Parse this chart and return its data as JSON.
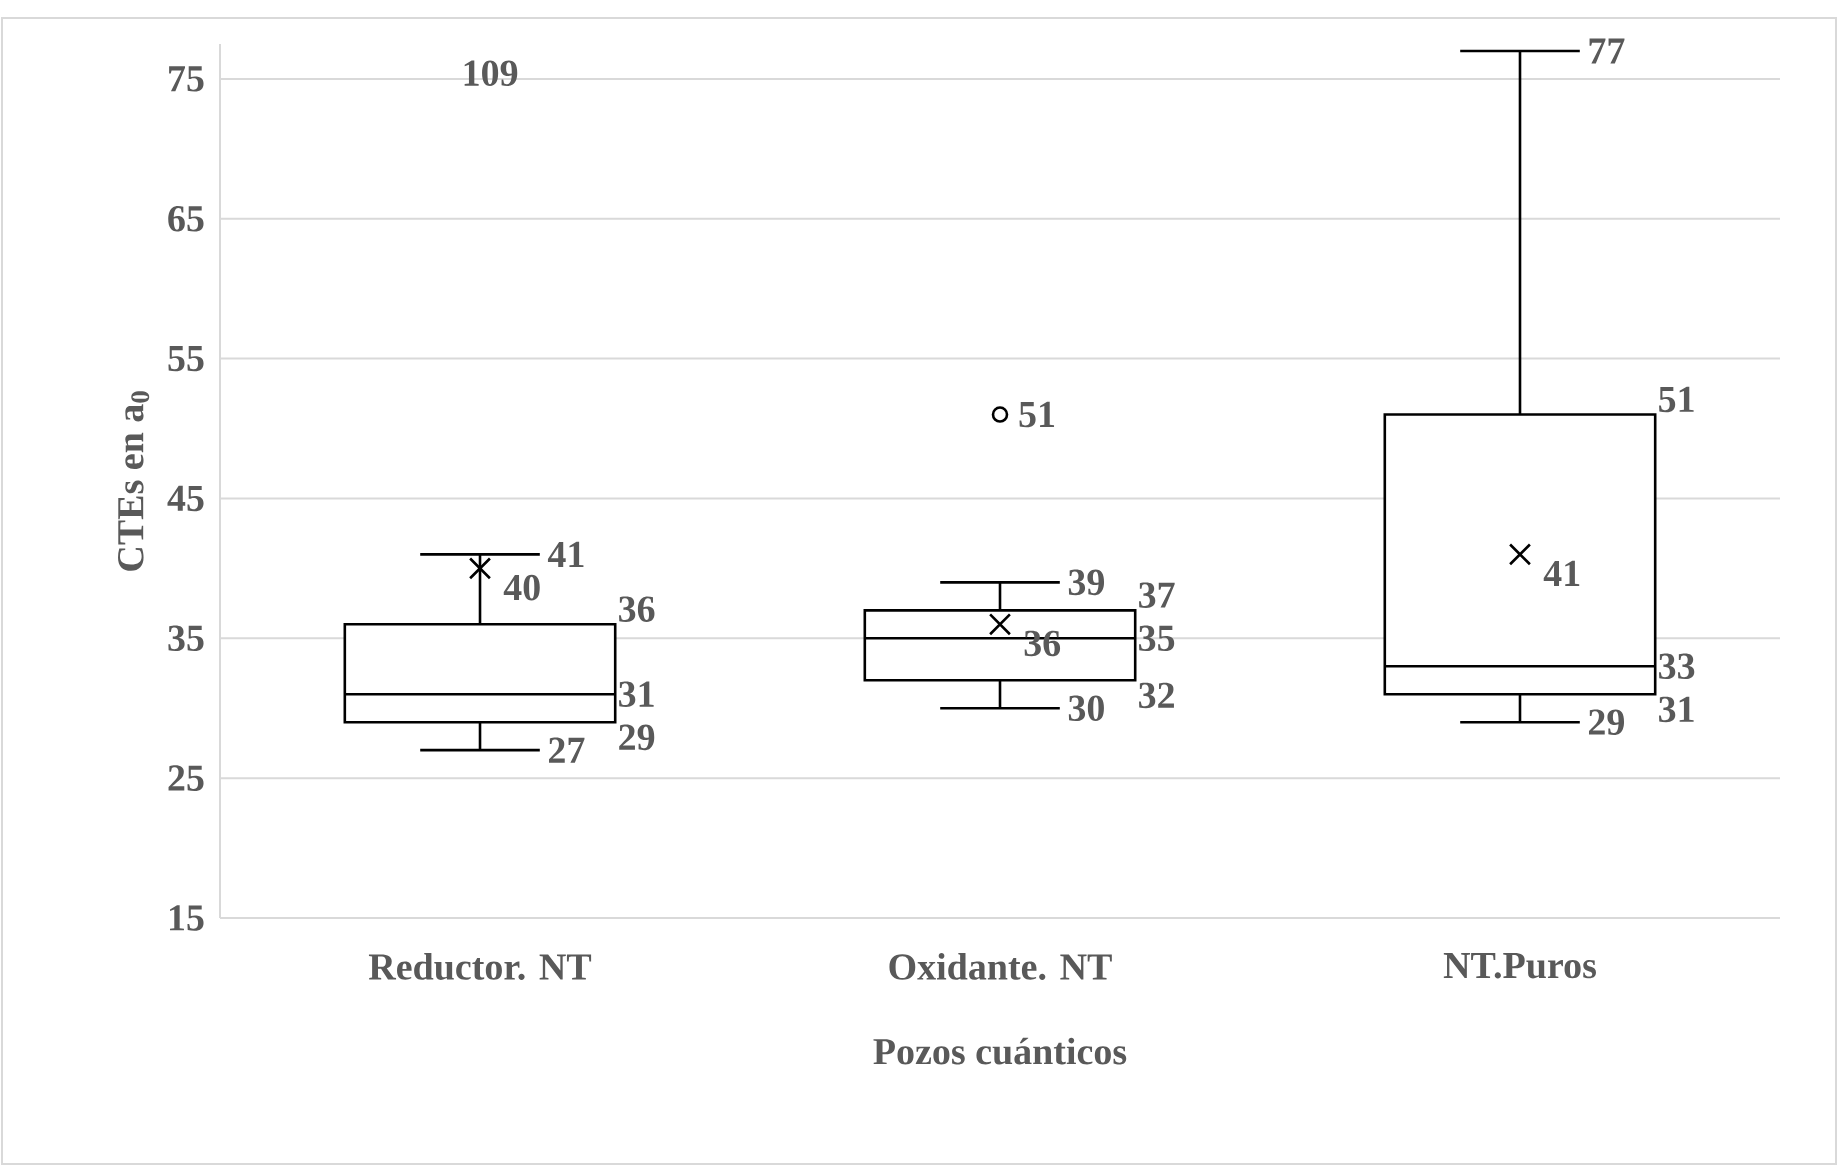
{
  "chart_data": {
    "type": "box",
    "xlabel": "Pozos cuánticos",
    "ylabel": "CTEs en a$_{0}$",
    "categories": [
      "Reductor. NT",
      "Oxidante. NT",
      "NT.Puros"
    ],
    "boxes": [
      {
        "low": 27,
        "q1": 29,
        "median": 31,
        "q3": 36,
        "high": 41,
        "mean": 40
      },
      {
        "low": 30,
        "q1": 32,
        "median": 35,
        "q3": 37,
        "high": 39,
        "mean": 36,
        "outliers": [
          51
        ]
      },
      {
        "low": 29,
        "q1": 31,
        "median": 33,
        "q3": 51,
        "high": 77,
        "mean": 41
      }
    ],
    "ylim": [
      15,
      77.5
    ],
    "yticks": [
      15,
      25,
      35,
      45,
      55,
      65,
      75
    ],
    "grid": "y",
    "annotations": [
      "109",
      "27",
      "29",
      "31",
      "36",
      "41",
      "40",
      "30",
      "32",
      "35",
      "37",
      "39",
      "36",
      "51",
      "29",
      "31",
      "33",
      "51",
      "77",
      "41"
    ]
  }
}
